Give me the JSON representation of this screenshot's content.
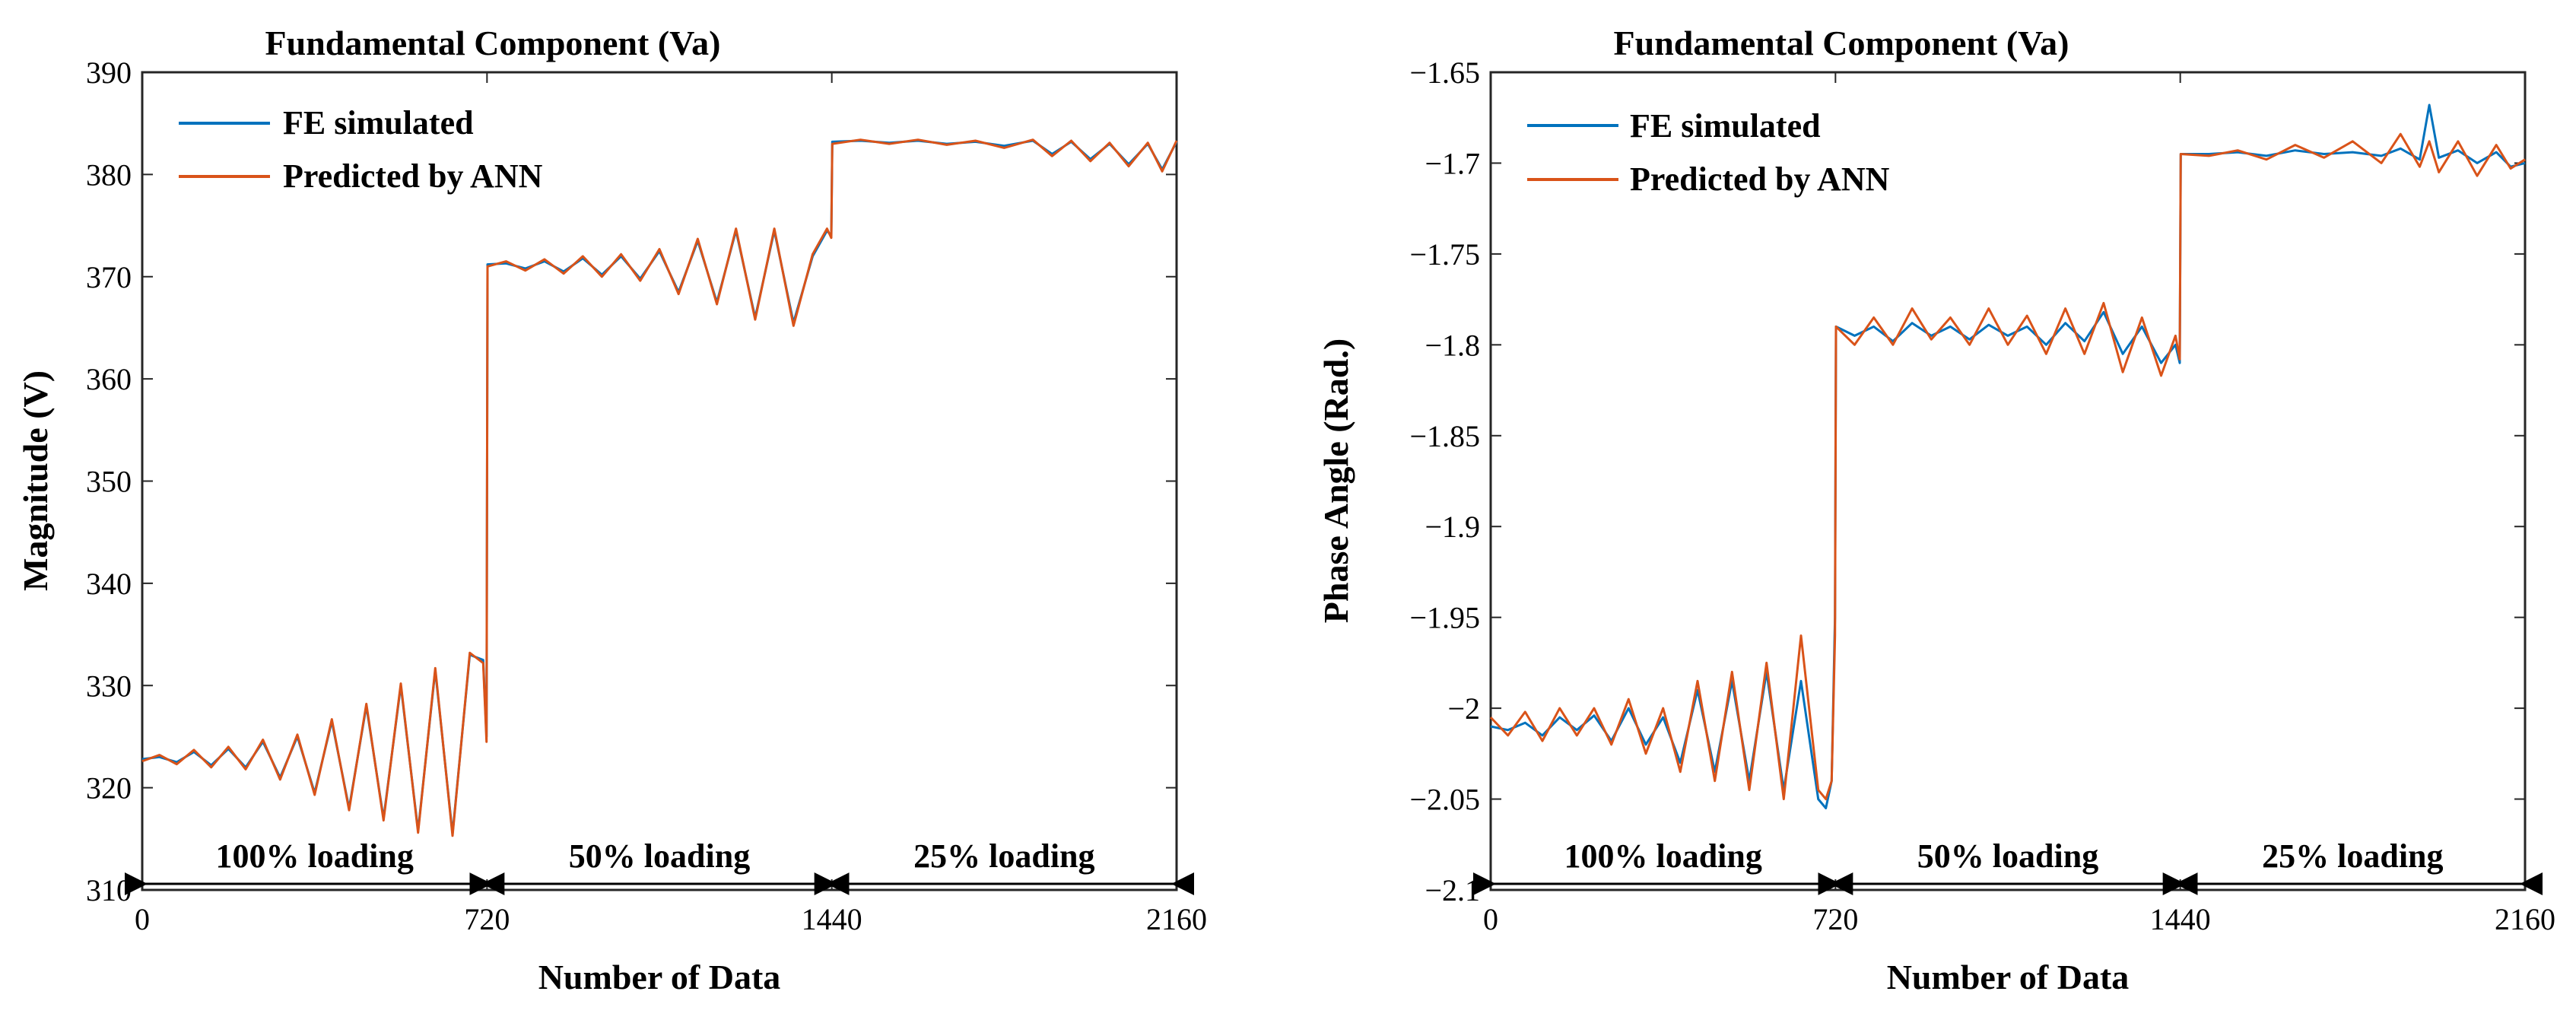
{
  "colors": {
    "fe": "#0072BD",
    "ann": "#D95319",
    "axis": "#262626"
  },
  "chart_data": [
    {
      "type": "line",
      "title": "Fundamental Component (Va)",
      "xlabel": "Number of Data",
      "ylabel": "Magnitude  (V)",
      "xlim": [
        0,
        2160
      ],
      "ylim": [
        310,
        390
      ],
      "xticks": [
        0,
        720,
        1440,
        2160
      ],
      "yticks": [
        310,
        320,
        330,
        340,
        350,
        360,
        370,
        380,
        390
      ],
      "xtick_labels": [
        "0",
        "720",
        "1440",
        "2160"
      ],
      "ytick_labels": [
        "310",
        "320",
        "330",
        "340",
        "350",
        "360",
        "370",
        "380",
        "390"
      ],
      "grid": false,
      "legend": "top-left",
      "legend_labels": [
        "FE simulated",
        "Predicted by ANN"
      ],
      "series": [
        {
          "name": "FE simulated",
          "x": [
            0,
            36,
            72,
            108,
            144,
            180,
            216,
            252,
            288,
            324,
            360,
            396,
            432,
            468,
            504,
            540,
            576,
            612,
            648,
            684,
            712,
            719,
            721,
            760,
            800,
            840,
            880,
            920,
            960,
            1000,
            1040,
            1080,
            1120,
            1160,
            1200,
            1240,
            1280,
            1320,
            1360,
            1400,
            1430,
            1439,
            1441,
            1500,
            1560,
            1620,
            1680,
            1740,
            1800,
            1860,
            1900,
            1940,
            1980,
            2020,
            2060,
            2100,
            2130,
            2160
          ],
          "y": [
            322.8,
            323.0,
            322.5,
            323.5,
            322.2,
            323.8,
            322.0,
            324.5,
            321.0,
            325.0,
            319.5,
            326.5,
            318.0,
            328.0,
            317.0,
            330.0,
            315.8,
            331.5,
            315.5,
            333.0,
            332.5,
            325.0,
            371.2,
            371.3,
            370.8,
            371.5,
            370.5,
            371.8,
            370.2,
            372.0,
            369.8,
            372.5,
            368.5,
            373.5,
            367.5,
            374.5,
            366.0,
            374.5,
            365.5,
            372.0,
            374.5,
            374.0,
            383.2,
            383.3,
            383.1,
            383.3,
            383.0,
            383.2,
            382.8,
            383.3,
            382.0,
            383.2,
            381.5,
            383.0,
            381.0,
            383.0,
            380.5,
            383.2
          ]
        },
        {
          "name": "Predicted by ANN",
          "x": [
            0,
            36,
            72,
            108,
            144,
            180,
            216,
            252,
            288,
            324,
            360,
            396,
            432,
            468,
            504,
            540,
            576,
            612,
            648,
            684,
            712,
            719,
            721,
            760,
            800,
            840,
            880,
            920,
            960,
            1000,
            1040,
            1080,
            1120,
            1160,
            1200,
            1240,
            1280,
            1320,
            1360,
            1400,
            1430,
            1439,
            1441,
            1500,
            1560,
            1620,
            1680,
            1740,
            1800,
            1860,
            1900,
            1940,
            1980,
            2020,
            2060,
            2100,
            2130,
            2160
          ],
          "y": [
            322.6,
            323.2,
            322.3,
            323.7,
            322.0,
            324.0,
            321.8,
            324.7,
            320.8,
            325.2,
            319.3,
            326.7,
            317.8,
            328.2,
            316.8,
            330.2,
            315.6,
            331.7,
            315.3,
            333.2,
            332.2,
            324.5,
            371.0,
            371.5,
            370.6,
            371.7,
            370.3,
            372.0,
            370.0,
            372.2,
            369.6,
            372.7,
            368.3,
            373.7,
            367.3,
            374.7,
            365.8,
            374.7,
            365.2,
            372.2,
            374.7,
            373.8,
            383.0,
            383.4,
            383.0,
            383.4,
            382.9,
            383.3,
            382.6,
            383.4,
            381.8,
            383.3,
            381.3,
            383.1,
            380.8,
            383.1,
            380.3,
            383.3
          ]
        }
      ],
      "annotations": [
        {
          "text": "100% loading",
          "from": 0,
          "to": 720
        },
        {
          "text": "50% loading",
          "from": 720,
          "to": 1440
        },
        {
          "text": "25% loading",
          "from": 1440,
          "to": 2160
        }
      ]
    },
    {
      "type": "line",
      "title": "Fundamental Component (Va)",
      "xlabel": "Number of Data",
      "ylabel": "Phase Angle (Rad.)",
      "xlim": [
        0,
        2160
      ],
      "ylim": [
        -2.1,
        -1.65
      ],
      "xticks": [
        0,
        720,
        1440,
        2160
      ],
      "yticks": [
        -2.1,
        -2.05,
        -2.0,
        -1.95,
        -1.9,
        -1.85,
        -1.8,
        -1.75,
        -1.7,
        -1.65
      ],
      "xtick_labels": [
        "0",
        "720",
        "1440",
        "2160"
      ],
      "ytick_labels": [
        "−2.1",
        "−2.05",
        "−2",
        "−1.95",
        "−1.9",
        "−1.85",
        "−1.8",
        "−1.75",
        "−1.7",
        "−1.65"
      ],
      "grid": false,
      "legend": "top-left",
      "legend_labels": [
        "FE simulated",
        "Predicted by ANN"
      ],
      "series": [
        {
          "name": "FE simulated",
          "x": [
            0,
            36,
            72,
            108,
            144,
            180,
            216,
            252,
            288,
            324,
            360,
            396,
            432,
            468,
            504,
            540,
            576,
            612,
            648,
            684,
            700,
            712,
            719,
            721,
            760,
            800,
            840,
            880,
            920,
            960,
            1000,
            1040,
            1080,
            1120,
            1160,
            1200,
            1240,
            1280,
            1320,
            1360,
            1400,
            1430,
            1439,
            1441,
            1500,
            1560,
            1620,
            1680,
            1740,
            1800,
            1860,
            1900,
            1940,
            1960,
            1980,
            2020,
            2060,
            2100,
            2130,
            2160
          ],
          "y": [
            -2.01,
            -2.012,
            -2.008,
            -2.015,
            -2.005,
            -2.012,
            -2.004,
            -2.018,
            -2.0,
            -2.02,
            -2.005,
            -2.03,
            -1.99,
            -2.035,
            -1.985,
            -2.04,
            -1.98,
            -2.045,
            -1.985,
            -2.05,
            -2.055,
            -2.04,
            -1.95,
            -1.79,
            -1.795,
            -1.79,
            -1.798,
            -1.788,
            -1.795,
            -1.79,
            -1.797,
            -1.789,
            -1.795,
            -1.79,
            -1.8,
            -1.788,
            -1.798,
            -1.782,
            -1.805,
            -1.79,
            -1.81,
            -1.8,
            -1.81,
            -1.695,
            -1.695,
            -1.694,
            -1.696,
            -1.693,
            -1.695,
            -1.694,
            -1.696,
            -1.692,
            -1.698,
            -1.668,
            -1.697,
            -1.693,
            -1.7,
            -1.694,
            -1.702,
            -1.7
          ]
        },
        {
          "name": "Predicted by ANN",
          "x": [
            0,
            36,
            72,
            108,
            144,
            180,
            216,
            252,
            288,
            324,
            360,
            396,
            432,
            468,
            504,
            540,
            576,
            612,
            648,
            684,
            700,
            712,
            719,
            721,
            760,
            800,
            840,
            880,
            920,
            960,
            1000,
            1040,
            1080,
            1120,
            1160,
            1200,
            1240,
            1280,
            1320,
            1360,
            1400,
            1430,
            1439,
            1441,
            1500,
            1560,
            1620,
            1680,
            1740,
            1800,
            1860,
            1900,
            1940,
            1960,
            1980,
            2020,
            2060,
            2100,
            2130,
            2160
          ],
          "y": [
            -2.005,
            -2.015,
            -2.002,
            -2.018,
            -2.0,
            -2.015,
            -2.0,
            -2.02,
            -1.995,
            -2.025,
            -2.0,
            -2.035,
            -1.985,
            -2.04,
            -1.98,
            -2.045,
            -1.975,
            -2.05,
            -1.96,
            -2.045,
            -2.05,
            -2.04,
            -1.96,
            -1.79,
            -1.8,
            -1.785,
            -1.8,
            -1.78,
            -1.797,
            -1.785,
            -1.8,
            -1.78,
            -1.8,
            -1.784,
            -1.805,
            -1.78,
            -1.805,
            -1.777,
            -1.815,
            -1.785,
            -1.817,
            -1.795,
            -1.808,
            -1.695,
            -1.696,
            -1.693,
            -1.698,
            -1.69,
            -1.697,
            -1.688,
            -1.7,
            -1.684,
            -1.702,
            -1.688,
            -1.705,
            -1.688,
            -1.707,
            -1.69,
            -1.703,
            -1.698
          ]
        }
      ],
      "annotations": [
        {
          "text": "100% loading",
          "from": 0,
          "to": 720
        },
        {
          "text": "50% loading",
          "from": 720,
          "to": 1440
        },
        {
          "text": "25% loading",
          "from": 1440,
          "to": 2160
        }
      ]
    }
  ]
}
